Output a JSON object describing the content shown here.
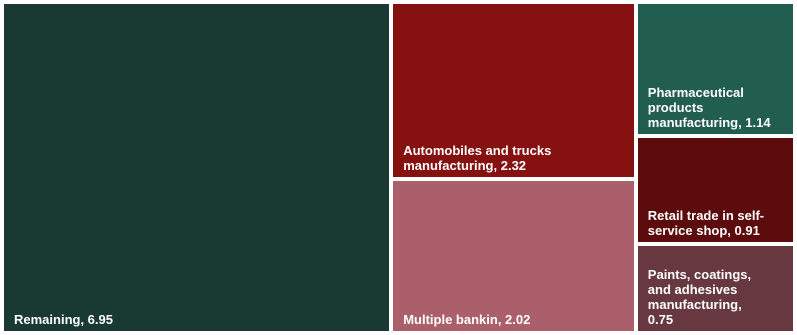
{
  "chart_data": {
    "type": "treemap",
    "items": [
      {
        "name": "Remaining",
        "value": 6.95,
        "label": "Remaining,  6.95",
        "color": "#193a32"
      },
      {
        "name": "Automobiles and trucks manufacturing",
        "value": 2.32,
        "label": "Automobiles and trucks\nmanufacturing,  2.32",
        "color": "#851111"
      },
      {
        "name": "Multiple bankin",
        "value": 2.02,
        "label": "Multiple bankin,  2.02",
        "color": "#aa5f6b"
      },
      {
        "name": "Pharmaceutical products manufacturing",
        "value": 1.14,
        "label": "Pharmaceutical\nproducts\nmanufacturing,  1.14",
        "color": "#225e50"
      },
      {
        "name": "Retail trade in self-service shop",
        "value": 0.91,
        "label": "Retail trade in self-\nservice shop,  0.91",
        "color": "#5d0c0d"
      },
      {
        "name": "Paints, coatings, and adhesives manufacturing",
        "value": 0.75,
        "label": "Paints, coatings,\nand adhesives\nmanufacturing,\n0.75",
        "color": "#673840"
      }
    ]
  }
}
